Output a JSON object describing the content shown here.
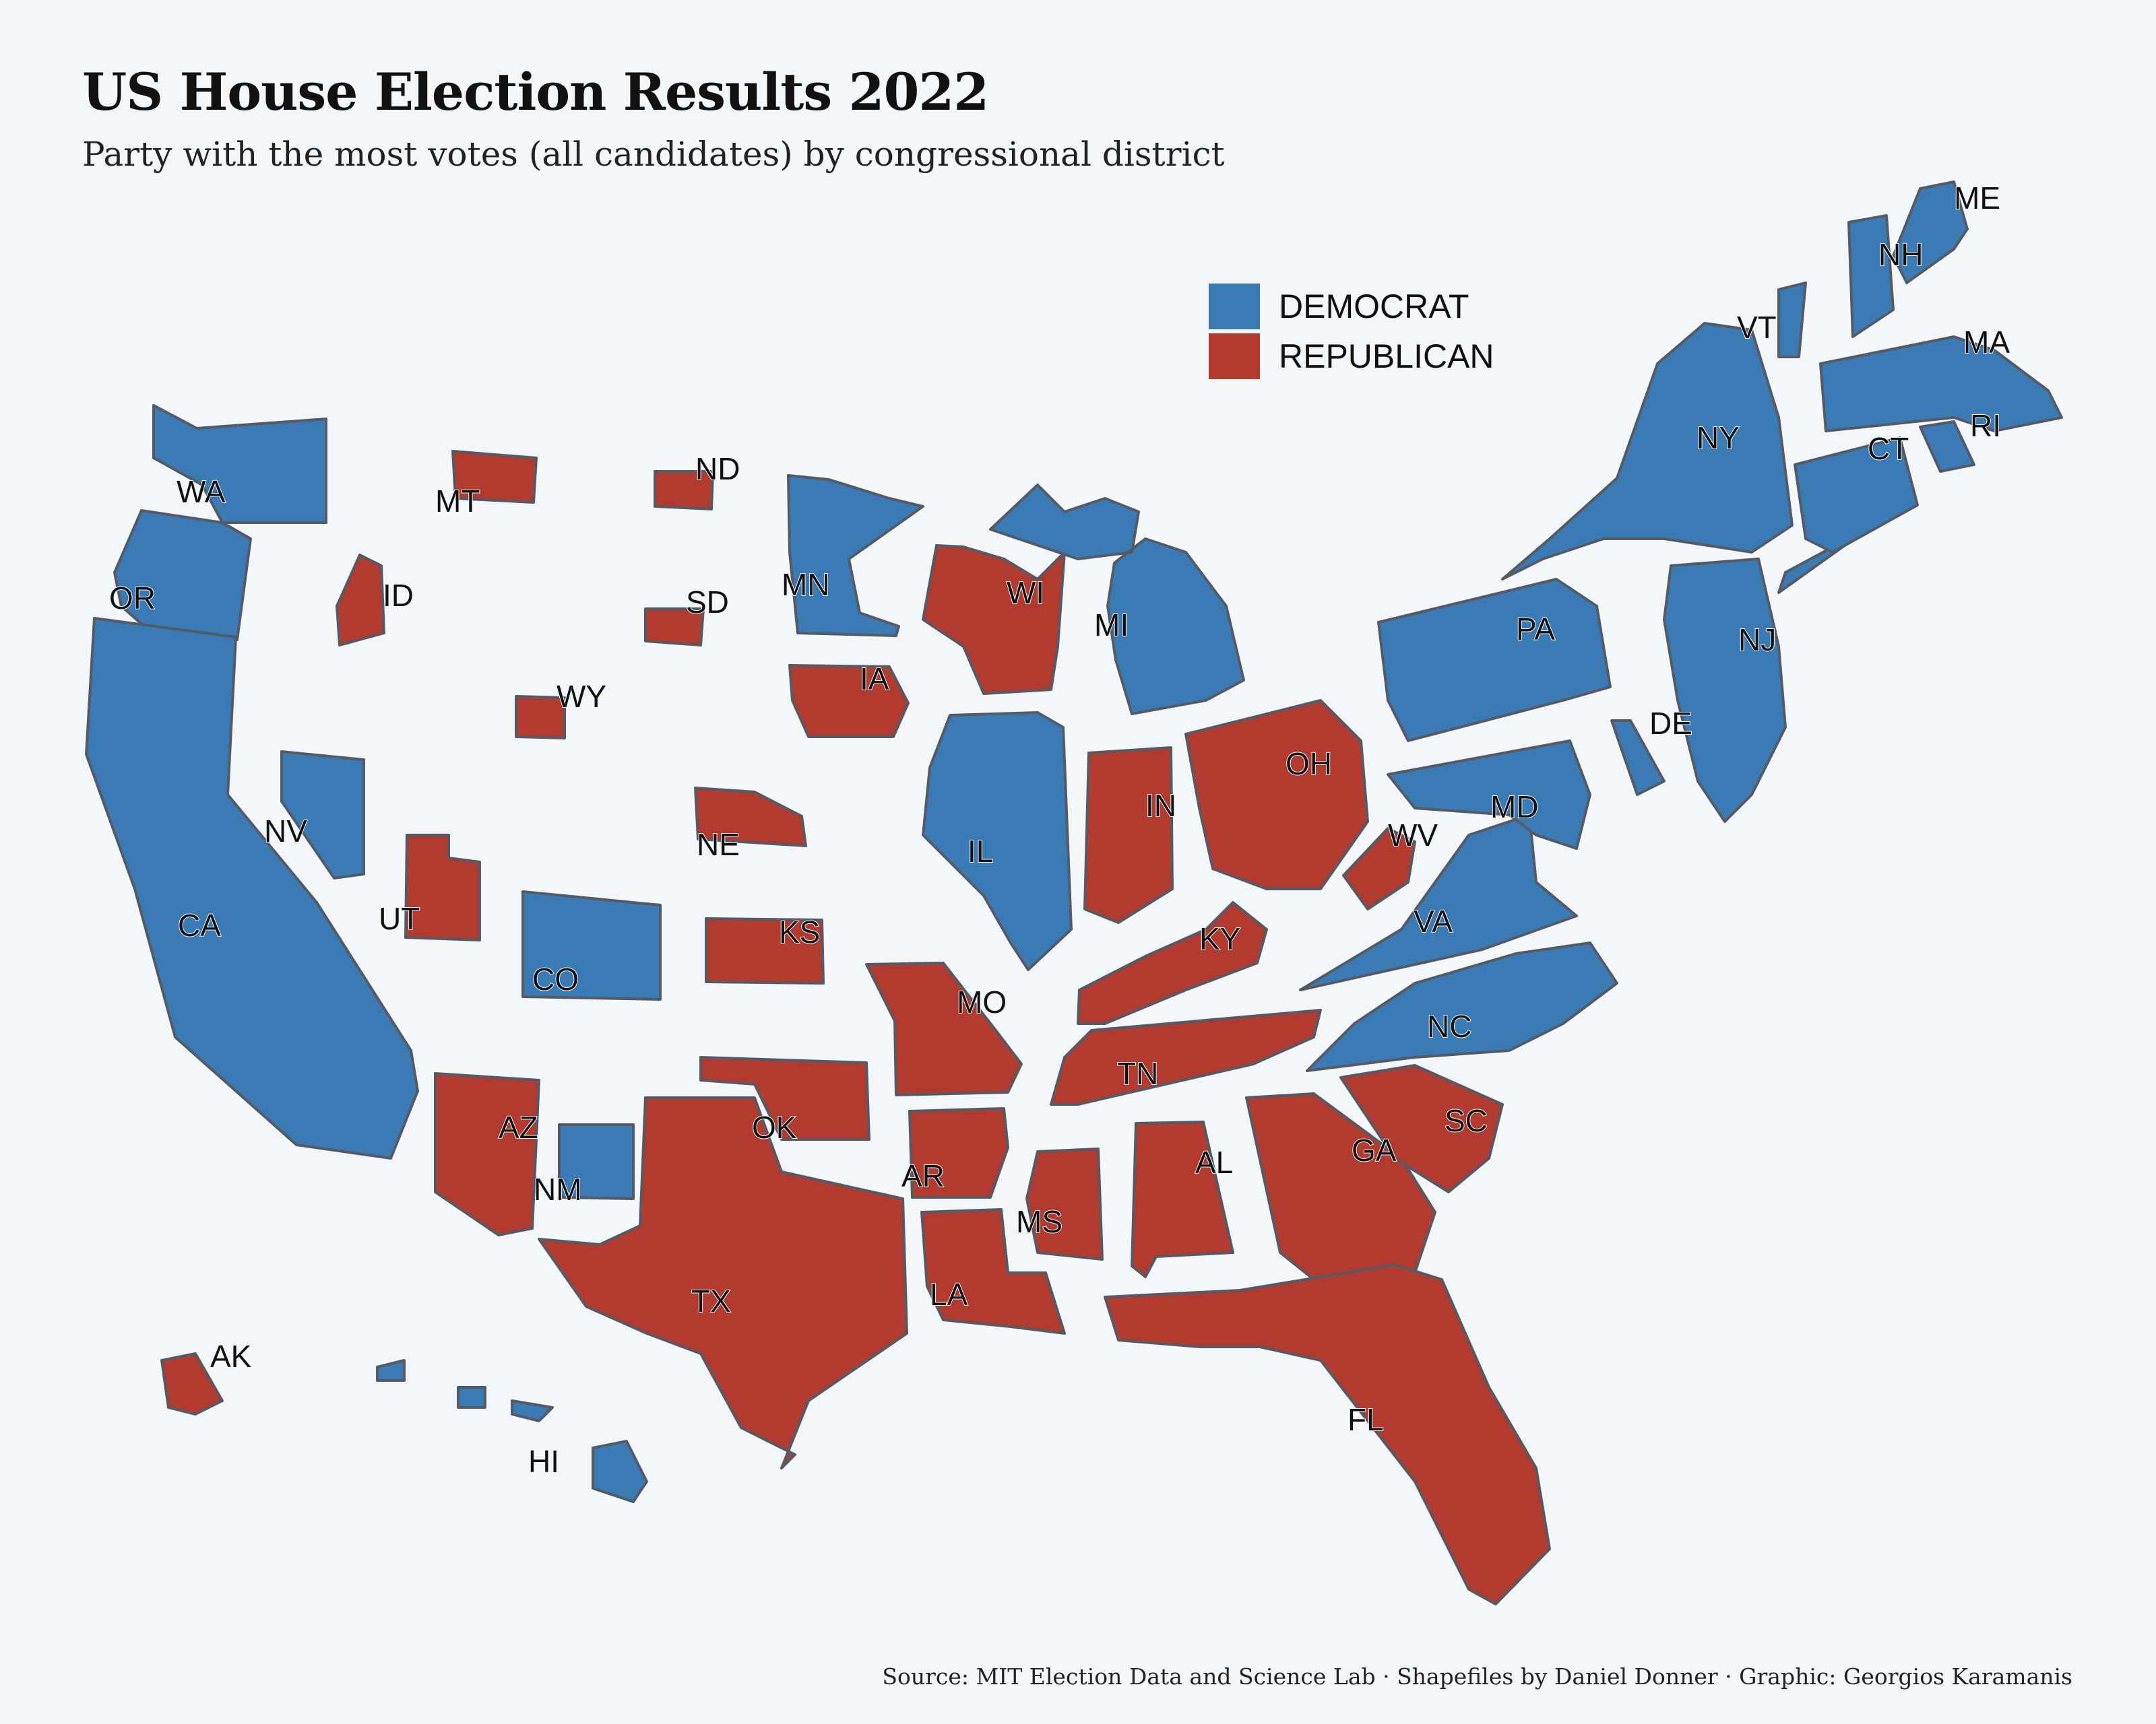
{
  "title": "US House Election Results 2022",
  "subtitle": "Party with the most votes (all candidates) by congressional district",
  "source": "Source: MIT Election Data and Science Lab · Shapefiles by Daniel Donner · Graphic: Georgios Karamanis",
  "colors": {
    "democrat": "#3a7ab5",
    "republican": "#b23a2f",
    "border": "#555b66",
    "background": "#f4f7fa"
  },
  "legend": [
    {
      "label": "DEMOCRAT",
      "party": "D"
    },
    {
      "label": "REPUBLICAN",
      "party": "R"
    }
  ],
  "states": [
    {
      "abbr": "WA",
      "party": "D"
    },
    {
      "abbr": "OR",
      "party": "D"
    },
    {
      "abbr": "CA",
      "party": "D"
    },
    {
      "abbr": "NV",
      "party": "D"
    },
    {
      "abbr": "ID",
      "party": "R"
    },
    {
      "abbr": "MT",
      "party": "R"
    },
    {
      "abbr": "WY",
      "party": "R"
    },
    {
      "abbr": "UT",
      "party": "R"
    },
    {
      "abbr": "CO",
      "party": "D"
    },
    {
      "abbr": "AZ",
      "party": "R"
    },
    {
      "abbr": "NM",
      "party": "D"
    },
    {
      "abbr": "ND",
      "party": "R"
    },
    {
      "abbr": "SD",
      "party": "R"
    },
    {
      "abbr": "NE",
      "party": "R"
    },
    {
      "abbr": "KS",
      "party": "R"
    },
    {
      "abbr": "OK",
      "party": "R"
    },
    {
      "abbr": "TX",
      "party": "R"
    },
    {
      "abbr": "MN",
      "party": "D"
    },
    {
      "abbr": "IA",
      "party": "R"
    },
    {
      "abbr": "MO",
      "party": "R"
    },
    {
      "abbr": "AR",
      "party": "R"
    },
    {
      "abbr": "LA",
      "party": "R"
    },
    {
      "abbr": "WI",
      "party": "R"
    },
    {
      "abbr": "IL",
      "party": "D"
    },
    {
      "abbr": "MI",
      "party": "D"
    },
    {
      "abbr": "IN",
      "party": "R"
    },
    {
      "abbr": "OH",
      "party": "R"
    },
    {
      "abbr": "KY",
      "party": "R"
    },
    {
      "abbr": "TN",
      "party": "R"
    },
    {
      "abbr": "MS",
      "party": "R"
    },
    {
      "abbr": "AL",
      "party": "R"
    },
    {
      "abbr": "GA",
      "party": "R"
    },
    {
      "abbr": "FL",
      "party": "R"
    },
    {
      "abbr": "SC",
      "party": "R"
    },
    {
      "abbr": "NC",
      "party": "D"
    },
    {
      "abbr": "VA",
      "party": "D"
    },
    {
      "abbr": "WV",
      "party": "R"
    },
    {
      "abbr": "MD",
      "party": "D"
    },
    {
      "abbr": "DE",
      "party": "D"
    },
    {
      "abbr": "PA",
      "party": "D"
    },
    {
      "abbr": "NJ",
      "party": "D"
    },
    {
      "abbr": "NY",
      "party": "D"
    },
    {
      "abbr": "CT",
      "party": "D"
    },
    {
      "abbr": "RI",
      "party": "D"
    },
    {
      "abbr": "MA",
      "party": "D"
    },
    {
      "abbr": "VT",
      "party": "D"
    },
    {
      "abbr": "NH",
      "party": "D"
    },
    {
      "abbr": "ME",
      "party": "D"
    },
    {
      "abbr": "AK",
      "party": "R"
    },
    {
      "abbr": "HI",
      "party": "D"
    }
  ]
}
